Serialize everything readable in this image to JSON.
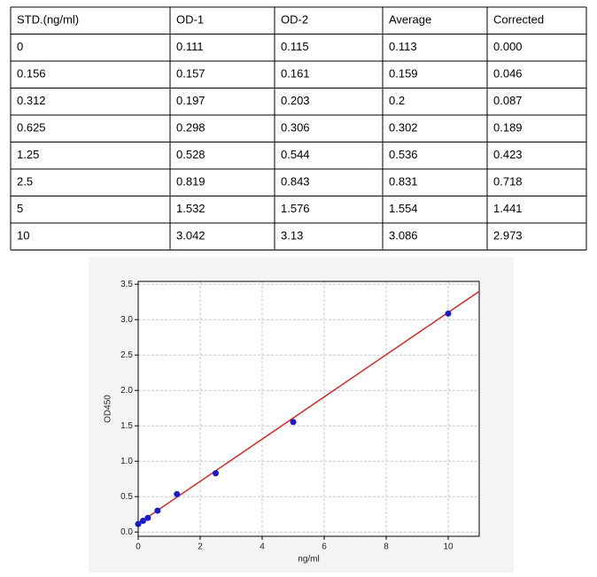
{
  "table": {
    "header": [
      "STD.(ng/ml)",
      "OD-1",
      "OD-2",
      "Average",
      "Corrected"
    ],
    "rows": [
      [
        "0",
        "0.111",
        "0.115",
        "0.113",
        "0.000"
      ],
      [
        "0.156",
        "0.157",
        "0.161",
        "0.159",
        "0.046"
      ],
      [
        "0.312",
        "0.197",
        "0.203",
        "0.2",
        "0.087"
      ],
      [
        "0.625",
        "0.298",
        "0.306",
        "0.302",
        "0.189"
      ],
      [
        "1.25",
        "0.528",
        "0.544",
        "0.536",
        "0.423"
      ],
      [
        "2.5",
        "0.819",
        "0.843",
        "0.831",
        "0.718"
      ],
      [
        "5",
        "1.532",
        "1.576",
        "1.554",
        "1.441"
      ],
      [
        "10",
        "3.042",
        "3.13",
        "3.086",
        "2.973"
      ]
    ]
  },
  "chart_data": {
    "type": "scatter",
    "xlabel": "ng/ml",
    "ylabel": "OD450",
    "points": {
      "color": "#1a1acc",
      "x": [
        0,
        0.156,
        0.312,
        0.625,
        1.25,
        2.5,
        5,
        10
      ],
      "values": [
        0.113,
        0.159,
        0.2,
        0.302,
        0.536,
        0.831,
        1.554,
        3.086
      ]
    },
    "fit": {
      "color": "#d62728",
      "x": [
        0,
        11
      ],
      "values": [
        0.12,
        3.4
      ]
    },
    "xlim": [
      0,
      11
    ],
    "ylim": [
      -0.06,
      3.54
    ],
    "xticks": [
      0,
      2,
      4,
      6,
      8,
      10
    ],
    "yticks": [
      {
        "value": 0,
        "label": "0.0"
      },
      {
        "value": 0.5,
        "label": "0.5"
      },
      {
        "value": 1,
        "label": "1.0"
      },
      {
        "value": 1.5,
        "label": "1.5"
      },
      {
        "value": 2,
        "label": "2.0"
      },
      {
        "value": 2.5,
        "label": "2.5"
      },
      {
        "value": 3,
        "label": "3.0"
      },
      {
        "value": 3.5,
        "label": "3.5"
      }
    ],
    "grid": true
  }
}
